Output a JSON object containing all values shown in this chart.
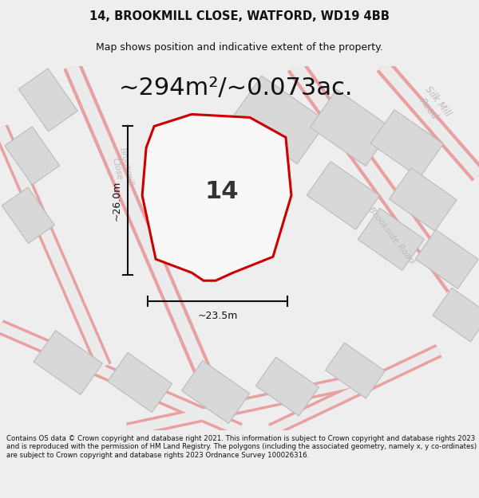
{
  "title_line1": "14, BROOKMILL CLOSE, WATFORD, WD19 4BB",
  "title_line2": "Map shows position and indicative extent of the property.",
  "area_text": "~294m²/~0.073ac.",
  "dim_width": "~23.5m",
  "dim_height": "~26.0m",
  "label_number": "14",
  "footer_text": "Contains OS data © Crown copyright and database right 2021. This information is subject to Crown copyright and database rights 2023 and is reproduced with the permission of HM Land Registry. The polygons (including the associated geometry, namely x, y co-ordinates) are subject to Crown copyright and database rights 2023 Ordnance Survey 100026316.",
  "bg_color": "#eeeeee",
  "map_bg": "#ebebeb",
  "plot_outline_color": "#cc0000",
  "plot_fill_color": "#f8f8f8",
  "building_fill": "#d8d8d8",
  "building_stroke": "#bbbbbb",
  "road_stroke": "#e8a0a0",
  "road_fill": "#ebebeb",
  "road_label_color": "#bbbbbb",
  "dim_line_color": "#111111",
  "title_color": "#111111",
  "footer_color": "#111111",
  "title_fontsize": 10.5,
  "subtitle_fontsize": 9,
  "area_fontsize": 22,
  "label_fontsize": 22,
  "footer_fontsize": 6.2
}
